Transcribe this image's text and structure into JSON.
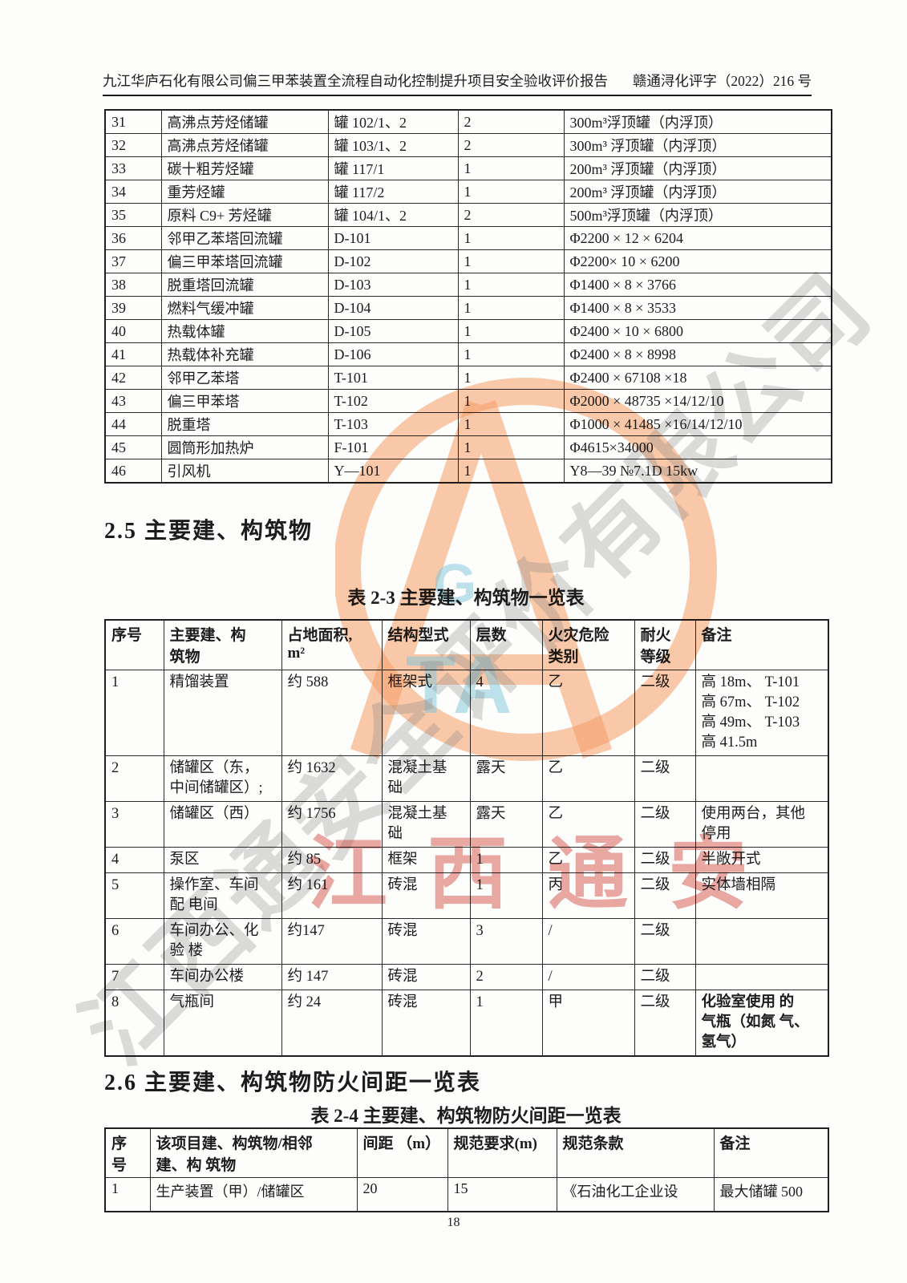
{
  "header": {
    "left": "九江华庐石化有限公司偏三甲苯装置全流程自动化控制提升项目安全验收评价报告",
    "right": "赣通浔化评字（2022）216 号"
  },
  "page_number": "18",
  "equipment_table": {
    "rows": [
      [
        "31",
        "高沸点芳烃储罐",
        "罐 102/1、2",
        "2",
        "300m³浮顶罐（内浮顶）"
      ],
      [
        "32",
        "高沸点芳烃储罐",
        "罐 103/1、2",
        "2",
        "300m³ 浮顶罐（内浮顶）"
      ],
      [
        "33",
        "碳十粗芳烃罐",
        "罐 117/1",
        "1",
        "200m³ 浮顶罐（内浮顶）"
      ],
      [
        "34",
        "重芳烃罐",
        "罐 117/2",
        "1",
        "200m³ 浮顶罐（内浮顶）"
      ],
      [
        "35",
        "原料 C9+ 芳烃罐",
        "罐 104/1、2",
        "2",
        "500m³浮顶罐（内浮顶）"
      ],
      [
        "36",
        "邻甲乙苯塔回流罐",
        "D-101",
        "1",
        "Φ2200 × 12 × 6204"
      ],
      [
        "37",
        "偏三甲苯塔回流罐",
        "D-102",
        "1",
        "Φ2200× 10 × 6200"
      ],
      [
        "38",
        "脱重塔回流罐",
        "D-103",
        "1",
        "Φ1400 × 8 × 3766"
      ],
      [
        "39",
        "燃料气缓冲罐",
        "D-104",
        "1",
        "Φ1400 × 8 × 3533"
      ],
      [
        "40",
        "热载体罐",
        "D-105",
        "1",
        "Φ2400 × 10 × 6800"
      ],
      [
        "41",
        "热载体补充罐",
        "D-106",
        "1",
        "Φ2400 × 8 × 8998"
      ],
      [
        "42",
        "邻甲乙苯塔",
        "T-101",
        "1",
        "Φ2400 × 67108 ×18"
      ],
      [
        "43",
        "偏三甲苯塔",
        "T-102",
        "1",
        "Φ2000 × 48735 ×14/12/10"
      ],
      [
        "44",
        "脱重塔",
        "T-103",
        "1",
        "Φ1000 × 41485 ×16/14/12/10"
      ],
      [
        "45",
        "圆筒形加热炉",
        "F-101",
        "1",
        "Φ4615×34000"
      ],
      [
        "46",
        "引风机",
        "Y—101",
        "1",
        "Y8—39 №7.1D 15kw"
      ]
    ]
  },
  "section_2_5": {
    "heading": "2.5 主要建、构筑物",
    "table_title": "表 2-3  主要建、构筑物一览表"
  },
  "buildings_table": {
    "headers": [
      "序号",
      "主要建、构\n筑物",
      "占地面积,\nm²",
      "结构型式",
      "层数",
      "火灾危险\n类别",
      "耐火\n等级",
      "备注"
    ],
    "rows": [
      [
        "1",
        "精馏装置",
        "约 588",
        "框架式",
        "4",
        "乙",
        "二级",
        "高  18m、 T-101\n高  67m、 T-102\n高  49m、 T-103\n高 41.5m"
      ],
      [
        "2",
        "储罐区（东，\n中间储罐区）;",
        "约 1632",
        "混凝土基\n础",
        "露天",
        "乙",
        "二级",
        ""
      ],
      [
        "3",
        "储罐区（西）",
        "约 1756",
        "混凝土基\n础",
        "露天",
        "乙",
        "二级",
        "使用两台，其他\n停用"
      ],
      [
        "4",
        "泵区",
        "约 85",
        "框架",
        "1",
        "乙",
        "二级",
        "半敞开式"
      ],
      [
        "5",
        "操作室、车间\n配 电间",
        "约 161",
        "砖混",
        "1",
        "丙",
        "二级",
        "实体墙相隔"
      ],
      [
        "6",
        "车间办公、化\n验 楼",
        "约147",
        "砖混",
        "3",
        "/",
        "二级",
        ""
      ],
      [
        "7",
        "车间办公楼",
        "约 147",
        "砖混",
        "2",
        "/",
        "二级",
        ""
      ],
      [
        "8",
        "气瓶间",
        "约 24",
        "砖混",
        "1",
        "甲",
        "二级",
        "化验室使用  的\n气瓶（如氮 气、\n氢气）"
      ]
    ]
  },
  "section_2_6": {
    "heading": "2.6 主要建、构筑物防火间距一览表",
    "table_title": "表 2-4  主要建、构筑物防火间距一览表"
  },
  "distance_table": {
    "headers": [
      "序\n号",
      "该项目建、构筑物/相邻\n建、构 筑物",
      "间距 （m）",
      "规范要求(m)",
      "规范条款",
      "备注"
    ],
    "rows": [
      [
        "1",
        "生产装置（甲）/储罐区",
        "20",
        "15",
        "《石油化工企业设",
        "最大储罐  500"
      ]
    ]
  },
  "watermark": {
    "red_text": "江西通安",
    "diagonal_text": "江西通安全评价有限公司",
    "logo_letter_top": "G",
    "logo_letters_bottom": "TA",
    "colors": {
      "red": "rgba(206,48,36,0.42)",
      "orange": "rgba(246,158,102,0.55)",
      "blue": "rgba(125,200,222,0.5)",
      "gray": "rgba(128,128,128,0.28)"
    }
  }
}
